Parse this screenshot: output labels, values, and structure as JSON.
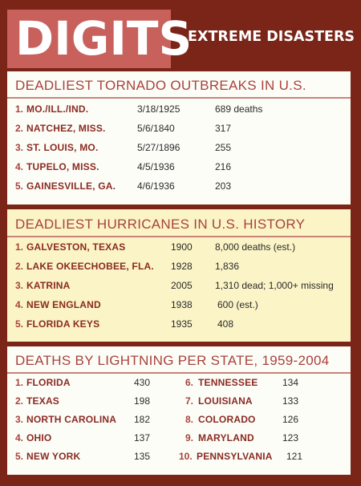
{
  "header": {
    "badge": "DIGITS",
    "title": "EXTREME DISASTERS"
  },
  "tornado": {
    "title": "DEADLIEST TORNADO OUTBREAKS IN U.S.",
    "rows": [
      {
        "rank": "1.",
        "place": "MO./ILL./IND.",
        "date": "3/18/1925",
        "deaths": "689 deaths"
      },
      {
        "rank": "2.",
        "place": "NATCHEZ, MISS.",
        "date": "5/6/1840",
        "deaths": "317"
      },
      {
        "rank": "3.",
        "place": "ST. LOUIS, MO.",
        "date": "5/27/1896",
        "deaths": "255"
      },
      {
        "rank": "4.",
        "place": "TUPELO, MISS.",
        "date": "4/5/1936",
        "deaths": "216"
      },
      {
        "rank": "5.",
        "place": "GAINESVILLE, GA.",
        "date": "4/6/1936",
        "deaths": "203"
      }
    ]
  },
  "hurricane": {
    "title": "DEADLIEST HURRICANES IN U.S. HISTORY",
    "rows": [
      {
        "rank": "1.",
        "name": "GALVESTON, TEXAS",
        "year": "1900",
        "deaths": "8,000 deaths (est.)"
      },
      {
        "rank": "2.",
        "name": "LAKE OKEECHOBEE, FLA.",
        "year": "1928",
        "deaths": "1,836"
      },
      {
        "rank": "3.",
        "name": "KATRINA",
        "year": "2005",
        "deaths": "1,310 dead; 1,000+ missing"
      },
      {
        "rank": "4.",
        "name": "NEW ENGLAND",
        "year": "1938",
        "deaths": "600 (est.)"
      },
      {
        "rank": "5.",
        "name": "FLORIDA KEYS",
        "year": "1935",
        "deaths": "408"
      }
    ]
  },
  "lightning": {
    "title": "DEATHS BY LIGHTNING PER STATE, 1959-2004",
    "left": [
      {
        "rank": "1.",
        "state": "FLORIDA",
        "deaths": "430"
      },
      {
        "rank": "2.",
        "state": "TEXAS",
        "deaths": "198"
      },
      {
        "rank": "3.",
        "state": "NORTH CAROLINA",
        "deaths": "182"
      },
      {
        "rank": "4.",
        "state": "OHIO",
        "deaths": "137"
      },
      {
        "rank": "5.",
        "state": "NEW YORK",
        "deaths": "135"
      }
    ],
    "right": [
      {
        "rank": "6.",
        "state": "TENNESSEE",
        "deaths": "134"
      },
      {
        "rank": "7.",
        "state": "LOUISIANA",
        "deaths": "133"
      },
      {
        "rank": "8.",
        "state": "COLORADO",
        "deaths": "126"
      },
      {
        "rank": "9.",
        "state": "MARYLAND",
        "deaths": "123"
      },
      {
        "rank": "10.",
        "state": "PENNSYLVANIA",
        "deaths": "121"
      }
    ]
  },
  "colors": {
    "background": "#7a2518",
    "badge": "#c8605c",
    "accent_text": "#a8423c",
    "yellow_panel": "#fbf4c6"
  }
}
